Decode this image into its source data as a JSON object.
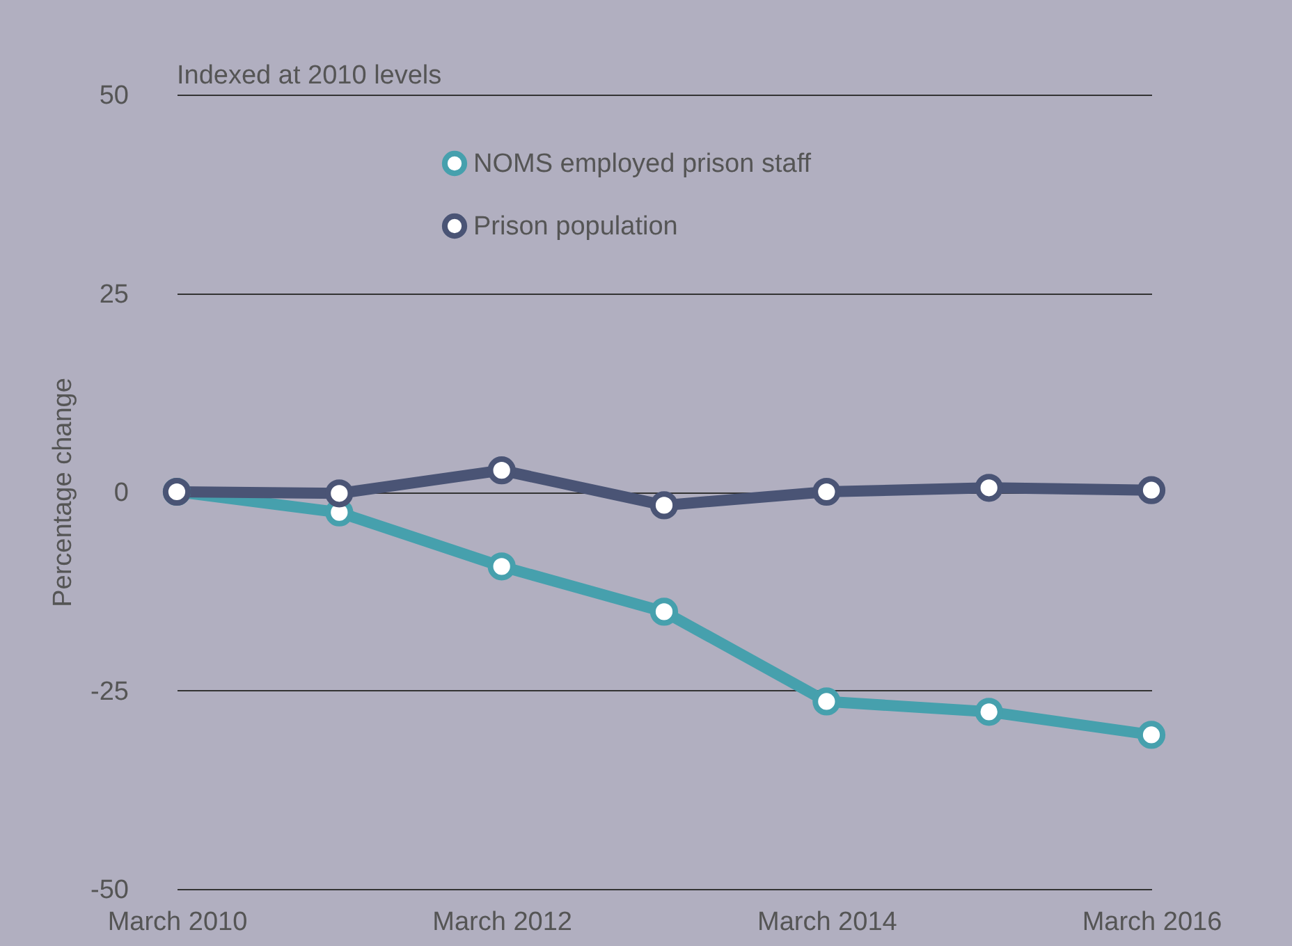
{
  "chart_data": {
    "type": "line",
    "ylabel": "Percentage change",
    "categories": [
      "March 2010",
      null,
      "March 2012",
      null,
      "March 2014",
      null,
      "March 2016"
    ],
    "series": [
      {
        "name": "NOMS employed prison staff",
        "color": "#46a0ad",
        "values": [
          0,
          -2.6,
          -9.4,
          -15.1,
          -26.4,
          -27.7,
          -30.6
        ]
      },
      {
        "name": "Prison population",
        "color": "#4a5475",
        "values": [
          0,
          -0.2,
          2.7,
          -1.7,
          0,
          0.5,
          0.2
        ]
      }
    ],
    "ylim": [
      -50,
      50
    ],
    "yticks": [
      -50,
      -25,
      0,
      25,
      50
    ],
    "grid": "y",
    "legend": "top",
    "marker": "circle",
    "line_style": "solid",
    "annotations": [
      "Indexed at 2010 levels"
    ]
  }
}
